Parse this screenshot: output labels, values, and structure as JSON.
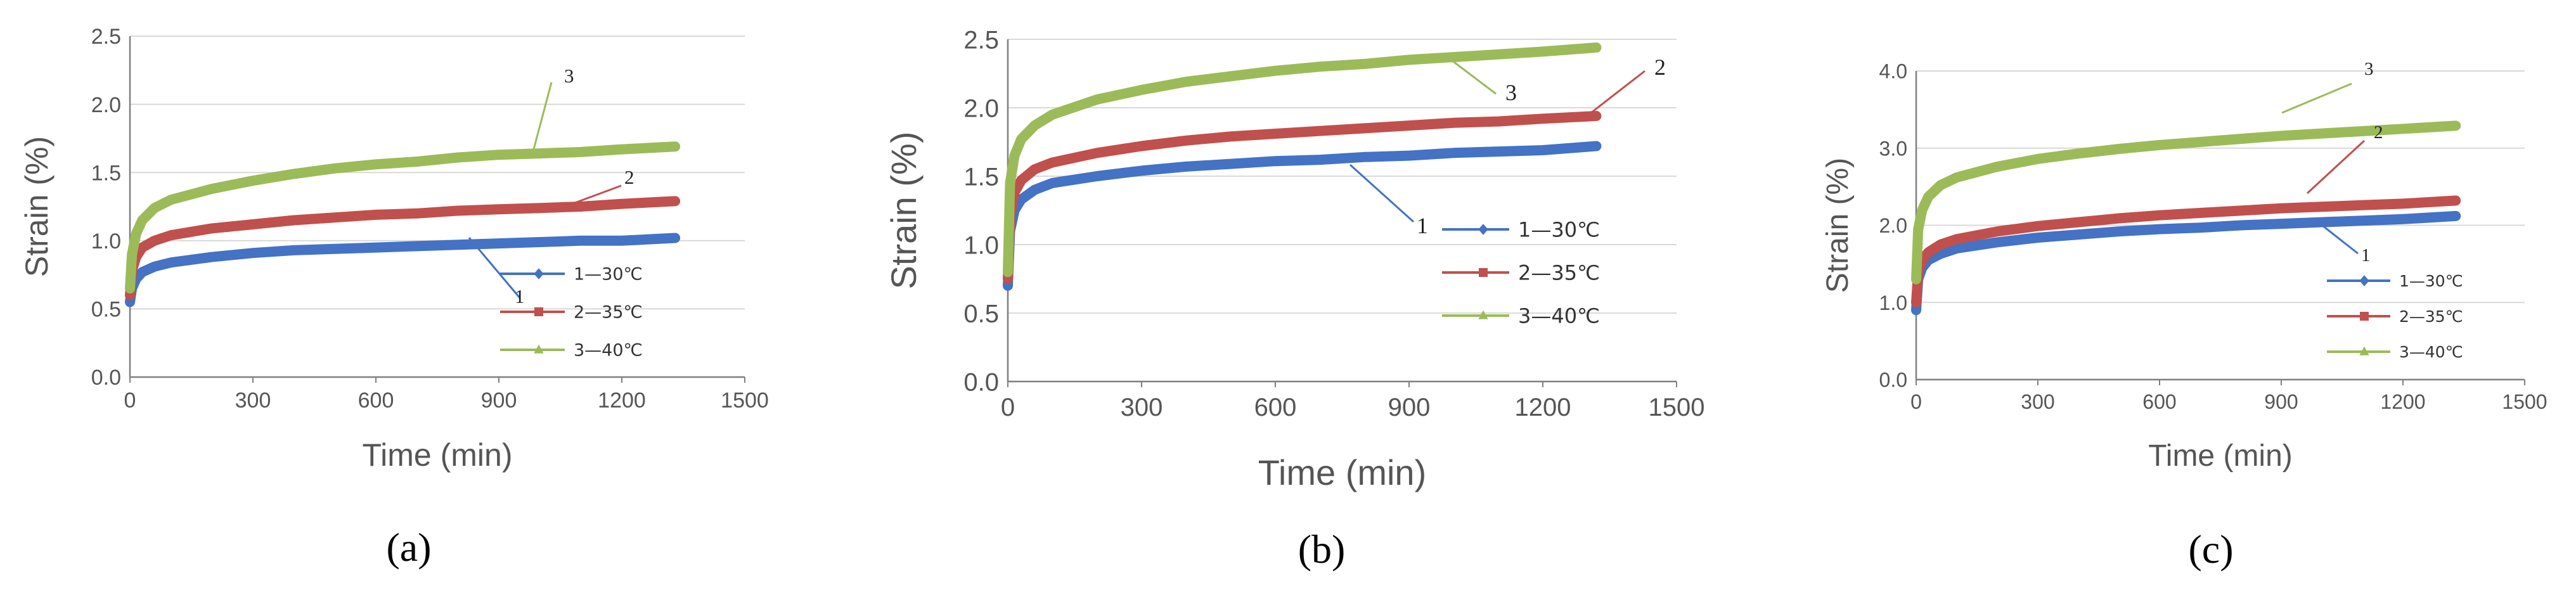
{
  "colors": {
    "series1": "#4472C4",
    "series2": "#C0504D",
    "series3": "#9BBB59",
    "grid": "#d9d9d9",
    "axis": "#7f7f7f"
  },
  "chart_data": [
    {
      "type": "line",
      "panel_label": "(a)",
      "xlabel": "Time (min)",
      "ylabel": "Strain (%)",
      "xlim": [
        0,
        1500
      ],
      "ylim": [
        0,
        2.5
      ],
      "xticks": [
        0,
        300,
        600,
        900,
        1200,
        1500
      ],
      "xtick_labels": [
        "0",
        "300",
        "600",
        "900",
        "1200",
        "1500"
      ],
      "yticks": [
        0,
        0.5,
        1.0,
        1.5,
        2.0,
        2.5
      ],
      "ytick_labels": [
        "0.0",
        "0.5",
        "1.0",
        "1.5",
        "2.0",
        "2.5"
      ],
      "legend_position": "bottom-right",
      "series": [
        {
          "name": "1—30℃",
          "annotation": "1",
          "x": [
            0,
            5,
            15,
            30,
            60,
            100,
            200,
            300,
            400,
            500,
            600,
            700,
            800,
            900,
            1000,
            1100,
            1200,
            1330
          ],
          "y": [
            0.55,
            0.65,
            0.72,
            0.77,
            0.81,
            0.84,
            0.88,
            0.91,
            0.93,
            0.94,
            0.95,
            0.96,
            0.97,
            0.98,
            0.99,
            1.0,
            1.0,
            1.02
          ]
        },
        {
          "name": "2—35℃",
          "annotation": "2",
          "x": [
            0,
            5,
            15,
            30,
            60,
            100,
            200,
            300,
            400,
            500,
            600,
            700,
            800,
            900,
            1000,
            1100,
            1200,
            1330
          ],
          "y": [
            0.6,
            0.78,
            0.88,
            0.95,
            1.0,
            1.04,
            1.09,
            1.12,
            1.15,
            1.17,
            1.19,
            1.2,
            1.22,
            1.23,
            1.24,
            1.25,
            1.27,
            1.29
          ]
        },
        {
          "name": "3—40℃",
          "annotation": "3",
          "x": [
            0,
            5,
            15,
            30,
            60,
            100,
            200,
            300,
            400,
            500,
            600,
            700,
            800,
            900,
            1000,
            1100,
            1200,
            1330
          ],
          "y": [
            0.65,
            0.9,
            1.05,
            1.15,
            1.24,
            1.3,
            1.38,
            1.44,
            1.49,
            1.53,
            1.56,
            1.58,
            1.61,
            1.63,
            1.64,
            1.65,
            1.67,
            1.69
          ]
        }
      ]
    },
    {
      "type": "line",
      "panel_label": "(b)",
      "xlabel": "Time (min)",
      "ylabel": "Strain (%)",
      "xlim": [
        0,
        1500
      ],
      "ylim": [
        0,
        2.5
      ],
      "xticks": [
        0,
        300,
        600,
        900,
        1200,
        1500
      ],
      "xtick_labels": [
        "0",
        "300",
        "600",
        "900",
        "1200",
        "1500"
      ],
      "yticks": [
        0,
        0.5,
        1.0,
        1.5,
        2.0,
        2.5
      ],
      "ytick_labels": [
        "0.0",
        "0.5",
        "1.0",
        "1.5",
        "2.0",
        "2.5"
      ],
      "legend_position": "right",
      "series": [
        {
          "name": "1—30℃",
          "annotation": "1",
          "x": [
            0,
            5,
            15,
            30,
            60,
            100,
            200,
            300,
            400,
            500,
            600,
            700,
            800,
            900,
            1000,
            1100,
            1200,
            1320
          ],
          "y": [
            0.7,
            1.1,
            1.25,
            1.33,
            1.4,
            1.45,
            1.5,
            1.54,
            1.57,
            1.59,
            1.61,
            1.62,
            1.64,
            1.65,
            1.67,
            1.68,
            1.69,
            1.72
          ]
        },
        {
          "name": "2—35℃",
          "annotation": "2",
          "x": [
            0,
            5,
            15,
            30,
            60,
            100,
            200,
            300,
            400,
            500,
            600,
            700,
            800,
            900,
            1000,
            1100,
            1200,
            1320
          ],
          "y": [
            0.75,
            1.2,
            1.38,
            1.47,
            1.55,
            1.6,
            1.67,
            1.72,
            1.76,
            1.79,
            1.81,
            1.83,
            1.85,
            1.87,
            1.89,
            1.9,
            1.92,
            1.94
          ]
        },
        {
          "name": "3—40℃",
          "annotation": "3",
          "x": [
            0,
            5,
            15,
            30,
            60,
            100,
            200,
            300,
            400,
            500,
            600,
            700,
            800,
            900,
            1000,
            1100,
            1200,
            1320
          ],
          "y": [
            0.8,
            1.45,
            1.65,
            1.77,
            1.87,
            1.95,
            2.06,
            2.13,
            2.19,
            2.23,
            2.27,
            2.3,
            2.32,
            2.35,
            2.37,
            2.39,
            2.41,
            2.44
          ]
        }
      ]
    },
    {
      "type": "line",
      "panel_label": "(c)",
      "xlabel": "Time (min)",
      "ylabel": "Strain (%)",
      "xlim": [
        0,
        1500
      ],
      "ylim": [
        0,
        4.0
      ],
      "xticks": [
        0,
        300,
        600,
        900,
        1200,
        1500
      ],
      "xtick_labels": [
        "0",
        "300",
        "600",
        "900",
        "1200",
        "1500"
      ],
      "yticks": [
        0,
        1.0,
        2.0,
        3.0,
        4.0
      ],
      "ytick_labels": [
        "0.0",
        "1.0",
        "2.0",
        "3.0",
        "4.0"
      ],
      "legend_position": "bottom-right",
      "series": [
        {
          "name": "1—30℃",
          "annotation": "1",
          "x": [
            0,
            5,
            15,
            30,
            60,
            100,
            200,
            300,
            400,
            500,
            600,
            700,
            800,
            900,
            1000,
            1100,
            1200,
            1330
          ],
          "y": [
            0.9,
            1.3,
            1.45,
            1.55,
            1.63,
            1.7,
            1.78,
            1.84,
            1.88,
            1.92,
            1.95,
            1.97,
            2.0,
            2.02,
            2.04,
            2.06,
            2.08,
            2.12
          ]
        },
        {
          "name": "2—35℃",
          "annotation": "2",
          "x": [
            0,
            5,
            15,
            30,
            60,
            100,
            200,
            300,
            400,
            500,
            600,
            700,
            800,
            900,
            1000,
            1100,
            1200,
            1330
          ],
          "y": [
            1.0,
            1.4,
            1.55,
            1.65,
            1.75,
            1.82,
            1.92,
            1.99,
            2.04,
            2.09,
            2.13,
            2.16,
            2.19,
            2.22,
            2.24,
            2.26,
            2.28,
            2.32
          ]
        },
        {
          "name": "3—40℃",
          "annotation": "3",
          "x": [
            0,
            5,
            15,
            30,
            60,
            100,
            200,
            300,
            400,
            500,
            600,
            700,
            800,
            900,
            1000,
            1100,
            1200,
            1330
          ],
          "y": [
            1.3,
            1.95,
            2.2,
            2.37,
            2.52,
            2.62,
            2.76,
            2.86,
            2.93,
            2.99,
            3.04,
            3.08,
            3.12,
            3.16,
            3.19,
            3.22,
            3.25,
            3.29
          ]
        }
      ]
    }
  ]
}
